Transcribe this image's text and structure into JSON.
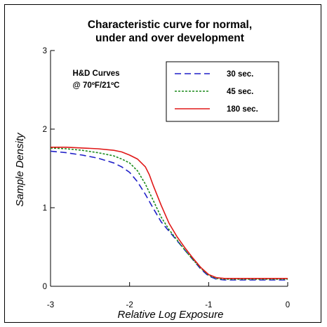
{
  "chart_data": {
    "type": "line",
    "title_lines": [
      "Characteristic curve for normal,",
      "under and over development"
    ],
    "xlabel": "Relative Log Exposure",
    "ylabel": "Sample Density",
    "xlim": [
      -3,
      0
    ],
    "ylim": [
      0,
      3
    ],
    "x_ticks": [
      -3,
      -2,
      -1,
      0
    ],
    "y_ticks": [
      0,
      1,
      2,
      3
    ],
    "x_tick_labels": [
      "-3",
      "-2",
      "-1",
      "0"
    ],
    "y_tick_labels": [
      "0",
      "1",
      "2",
      "3"
    ],
    "annotation_lines": [
      "H&D Curves",
      "@ 70ºF/21ºC"
    ],
    "legend_position": "top-right",
    "grid": false,
    "series": [
      {
        "name": "30 sec.",
        "color": "#1f1fc8",
        "dash": "dashed",
        "x": [
          -3.0,
          -2.8,
          -2.6,
          -2.4,
          -2.2,
          -2.1,
          -2.0,
          -1.9,
          -1.8,
          -1.7,
          -1.6,
          -1.5,
          -1.4,
          -1.3,
          -1.2,
          -1.1,
          -1.0,
          -0.9,
          -0.8,
          -0.6,
          -0.4,
          -0.2,
          0.0
        ],
        "y": [
          1.72,
          1.7,
          1.67,
          1.63,
          1.57,
          1.52,
          1.45,
          1.33,
          1.17,
          0.99,
          0.82,
          0.7,
          0.58,
          0.46,
          0.34,
          0.22,
          0.13,
          0.09,
          0.08,
          0.08,
          0.08,
          0.08,
          0.08
        ]
      },
      {
        "name": "45 sec.",
        "color": "#1a8a1a",
        "dash": "dotted",
        "x": [
          -3.0,
          -2.8,
          -2.6,
          -2.4,
          -2.2,
          -2.1,
          -2.0,
          -1.9,
          -1.8,
          -1.7,
          -1.6,
          -1.5,
          -1.4,
          -1.3,
          -1.2,
          -1.1,
          -1.0,
          -0.9,
          -0.8,
          -0.6,
          -0.4,
          -0.2,
          0.0
        ],
        "y": [
          1.76,
          1.75,
          1.73,
          1.7,
          1.66,
          1.62,
          1.57,
          1.47,
          1.3,
          1.09,
          0.88,
          0.72,
          0.59,
          0.46,
          0.34,
          0.23,
          0.14,
          0.1,
          0.09,
          0.09,
          0.09,
          0.09,
          0.09
        ]
      },
      {
        "name": "180 sec.",
        "color": "#e01818",
        "dash": "solid",
        "x": [
          -3.0,
          -2.8,
          -2.6,
          -2.4,
          -2.2,
          -2.1,
          -2.0,
          -1.9,
          -1.8,
          -1.75,
          -1.7,
          -1.6,
          -1.5,
          -1.4,
          -1.3,
          -1.2,
          -1.1,
          -1.0,
          -0.9,
          -0.8,
          -0.6,
          -0.4,
          -0.2,
          0.0
        ],
        "y": [
          1.77,
          1.77,
          1.76,
          1.75,
          1.73,
          1.71,
          1.67,
          1.62,
          1.52,
          1.42,
          1.28,
          1.03,
          0.8,
          0.63,
          0.49,
          0.36,
          0.24,
          0.15,
          0.11,
          0.1,
          0.1,
          0.1,
          0.1,
          0.1
        ]
      }
    ]
  }
}
